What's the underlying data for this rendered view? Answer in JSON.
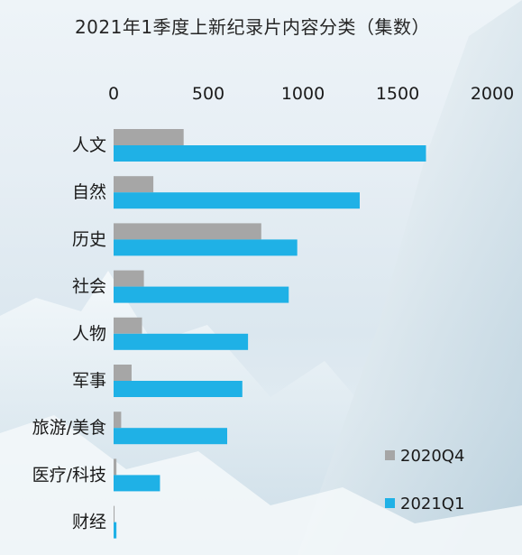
{
  "chart_data": {
    "type": "bar",
    "orientation": "horizontal",
    "title": "2021年1季度上新纪录片内容分类（集数）",
    "categories": [
      "人文",
      "自然",
      "历史",
      "社会",
      "人物",
      "军事",
      "旅游/美食",
      "医疗/科技",
      "财经"
    ],
    "xlim": [
      0,
      2000
    ],
    "xticks": [
      0,
      500,
      1000,
      1500,
      2000
    ],
    "x_axis_position": "top",
    "grid": false,
    "legend_position": "bottom-right",
    "series": [
      {
        "name": "2020Q4",
        "color": "#a6a6a6",
        "values": [
          370,
          210,
          780,
          160,
          150,
          95,
          40,
          15,
          5
        ]
      },
      {
        "name": "2021Q1",
        "color": "#1fb1e6",
        "values": [
          1650,
          1300,
          970,
          925,
          710,
          680,
          600,
          245,
          15
        ]
      }
    ]
  }
}
